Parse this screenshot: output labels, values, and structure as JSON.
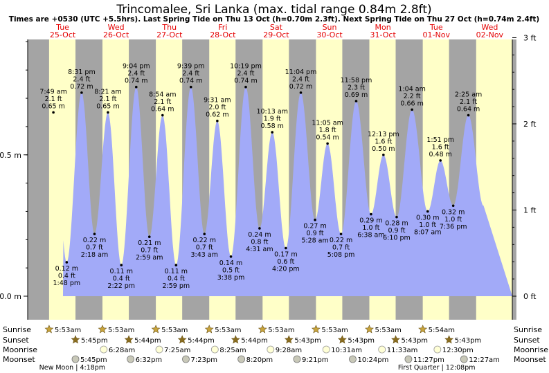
{
  "title": "Trincomalee, Sri Lanka (max. tidal range 0.84m 2.8ft)",
  "subtitle": "Times are +0530 (UTC +5.5hrs). Last Spring Tide on Thu 13 Oct (h=0.70m 2.3ft). Next Spring Tide on Thu 27 Oct (h=0.74m 2.4ft)",
  "colors": {
    "day": "#ffffc8",
    "night": "#a4a4a4",
    "water": "#a2aaf8",
    "date_text": "#e40000",
    "star": "#c8a43c",
    "star_dark": "#8a6d1f"
  },
  "chart_data": {
    "type": "area",
    "title": "Trincomalee, Sri Lanka (max. tidal range 0.84m 2.8ft)",
    "y_left_ticks": [
      "0.0 m",
      "0.5 m"
    ],
    "y_right_ticks": [
      "0 ft",
      "1 ft",
      "2 ft",
      "3 ft"
    ],
    "ylim_m": [
      -0.08,
      0.91
    ],
    "days": [
      {
        "dow": "Tue",
        "date": "25-Oct"
      },
      {
        "dow": "Wed",
        "date": "26-Oct"
      },
      {
        "dow": "Thu",
        "date": "27-Oct"
      },
      {
        "dow": "Fri",
        "date": "28-Oct"
      },
      {
        "dow": "Sat",
        "date": "29-Oct"
      },
      {
        "dow": "Sun",
        "date": "30-Oct"
      },
      {
        "dow": "Mon",
        "date": "31-Oct"
      },
      {
        "dow": "Tue",
        "date": "01-Nov"
      },
      {
        "dow": "Wed",
        "date": "02-Nov"
      }
    ],
    "tides": [
      {
        "day": 0,
        "time": "7:49 am",
        "m": 0.65,
        "ft": "2.1 ft",
        "m_label": "0.65 m",
        "type": "high"
      },
      {
        "day": 0,
        "time": "1:48 pm",
        "m": 0.12,
        "ft": "0.4 ft",
        "m_label": "0.12 m",
        "type": "low"
      },
      {
        "day": 0,
        "time": "8:31 pm",
        "m": 0.72,
        "ft": "2.4 ft",
        "m_label": "0.72 m",
        "type": "high"
      },
      {
        "day": 1,
        "time": "2:18 am",
        "m": 0.22,
        "ft": "0.7 ft",
        "m_label": "0.22 m",
        "type": "low"
      },
      {
        "day": 1,
        "time": "8:21 am",
        "m": 0.65,
        "ft": "2.1 ft",
        "m_label": "0.65 m",
        "type": "high"
      },
      {
        "day": 1,
        "time": "2:22 pm",
        "m": 0.11,
        "ft": "0.4 ft",
        "m_label": "0.11 m",
        "type": "low"
      },
      {
        "day": 1,
        "time": "9:04 pm",
        "m": 0.74,
        "ft": "2.4 ft",
        "m_label": "0.74 m",
        "type": "high"
      },
      {
        "day": 2,
        "time": "2:59 am",
        "m": 0.21,
        "ft": "0.7 ft",
        "m_label": "0.21 m",
        "type": "low"
      },
      {
        "day": 2,
        "time": "8:54 am",
        "m": 0.64,
        "ft": "2.1 ft",
        "m_label": "0.64 m",
        "type": "high"
      },
      {
        "day": 2,
        "time": "2:59 pm",
        "m": 0.11,
        "ft": "0.4 ft",
        "m_label": "0.11 m",
        "type": "low"
      },
      {
        "day": 2,
        "time": "9:39 pm",
        "m": 0.74,
        "ft": "2.4 ft",
        "m_label": "0.74 m",
        "type": "high"
      },
      {
        "day": 3,
        "time": "3:43 am",
        "m": 0.22,
        "ft": "0.7 ft",
        "m_label": "0.22 m",
        "type": "low"
      },
      {
        "day": 3,
        "time": "9:31 am",
        "m": 0.62,
        "ft": "2.0 ft",
        "m_label": "0.62 m",
        "type": "high"
      },
      {
        "day": 3,
        "time": "3:38 pm",
        "m": 0.14,
        "ft": "0.5 ft",
        "m_label": "0.14 m",
        "type": "low"
      },
      {
        "day": 3,
        "time": "10:19 pm",
        "m": 0.74,
        "ft": "2.4 ft",
        "m_label": "0.74 m",
        "type": "high"
      },
      {
        "day": 4,
        "time": "4:31 am",
        "m": 0.24,
        "ft": "0.8 ft",
        "m_label": "0.24 m",
        "type": "low"
      },
      {
        "day": 4,
        "time": "10:13 am",
        "m": 0.58,
        "ft": "1.9 ft",
        "m_label": "0.58 m",
        "type": "high"
      },
      {
        "day": 4,
        "time": "4:20 pm",
        "m": 0.17,
        "ft": "0.6 ft",
        "m_label": "0.17 m",
        "type": "low"
      },
      {
        "day": 4,
        "time": "11:04 pm",
        "m": 0.72,
        "ft": "2.4 ft",
        "m_label": "0.72 m",
        "type": "high"
      },
      {
        "day": 5,
        "time": "5:28 am",
        "m": 0.27,
        "ft": "0.9 ft",
        "m_label": "0.27 m",
        "type": "low"
      },
      {
        "day": 5,
        "time": "11:05 am",
        "m": 0.54,
        "ft": "1.8 ft",
        "m_label": "0.54 m",
        "type": "high"
      },
      {
        "day": 5,
        "time": "5:08 pm",
        "m": 0.22,
        "ft": "0.7 ft",
        "m_label": "0.22 m",
        "type": "low"
      },
      {
        "day": 5,
        "time": "11:58 pm",
        "m": 0.69,
        "ft": "2.3 ft",
        "m_label": "0.69 m",
        "type": "high"
      },
      {
        "day": 6,
        "time": "6:38 am",
        "m": 0.29,
        "ft": "1.0 ft",
        "m_label": "0.29 m",
        "type": "low"
      },
      {
        "day": 6,
        "time": "12:13 pm",
        "m": 0.5,
        "ft": "1.6 ft",
        "m_label": "0.50 m",
        "type": "high"
      },
      {
        "day": 6,
        "time": "6:10 pm",
        "m": 0.28,
        "ft": "0.9 ft",
        "m_label": "0.28 m",
        "type": "low"
      },
      {
        "day": 7,
        "time": "1:04 am",
        "m": 0.66,
        "ft": "2.2 ft",
        "m_label": "0.66 m",
        "type": "high"
      },
      {
        "day": 7,
        "time": "8:07 am",
        "m": 0.3,
        "ft": "1.0 ft",
        "m_label": "0.30 m",
        "type": "low"
      },
      {
        "day": 7,
        "time": "1:51 pm",
        "m": 0.48,
        "ft": "1.6 ft",
        "m_label": "0.48 m",
        "type": "high"
      },
      {
        "day": 7,
        "time": "7:36 pm",
        "m": 0.32,
        "ft": "1.0 ft",
        "m_label": "0.32 m",
        "type": "low"
      },
      {
        "day": 8,
        "time": "2:25 am",
        "m": 0.64,
        "ft": "2.1 ft",
        "m_label": "0.64 m",
        "type": "high"
      }
    ],
    "sun": [
      {
        "rise": "5:53am",
        "set": "5:45pm"
      },
      {
        "rise": "5:53am",
        "set": "5:44pm"
      },
      {
        "rise": "5:53am",
        "set": "5:44pm"
      },
      {
        "rise": "5:53am",
        "set": "5:44pm"
      },
      {
        "rise": "5:53am",
        "set": "5:43pm"
      },
      {
        "rise": "5:53am",
        "set": "5:43pm"
      },
      {
        "rise": "5:53am",
        "set": "5:43pm"
      },
      {
        "rise": "5:54am",
        "set": "5:43pm"
      }
    ],
    "moonrise": [
      {
        "day": 1,
        "time": "6:28am"
      },
      {
        "day": 2,
        "time": "7:25am"
      },
      {
        "day": 3,
        "time": "8:25am"
      },
      {
        "day": 4,
        "time": "9:28am"
      },
      {
        "day": 5,
        "time": "10:31am"
      },
      {
        "day": 6,
        "time": "11:33am"
      },
      {
        "day": 7,
        "time": "12:30pm"
      }
    ],
    "moonset": [
      {
        "day": 0,
        "time": "5:45pm"
      },
      {
        "day": 1,
        "time": "6:32pm"
      },
      {
        "day": 2,
        "time": "7:23pm"
      },
      {
        "day": 3,
        "time": "8:20pm"
      },
      {
        "day": 4,
        "time": "9:21pm"
      },
      {
        "day": 5,
        "time": "10:24pm"
      },
      {
        "day": 6,
        "time": "11:27pm"
      },
      {
        "day": 8,
        "time": "12:27am"
      }
    ],
    "moon_phases": [
      {
        "label": "New Moon | 4:18pm",
        "day": 0,
        "time": "4:18pm"
      },
      {
        "label": "First Quarter | 12:08pm",
        "day": 7,
        "time": "12:08pm"
      }
    ],
    "row_labels": [
      "Sunrise",
      "Sunset",
      "Moonrise",
      "Moonset"
    ]
  }
}
